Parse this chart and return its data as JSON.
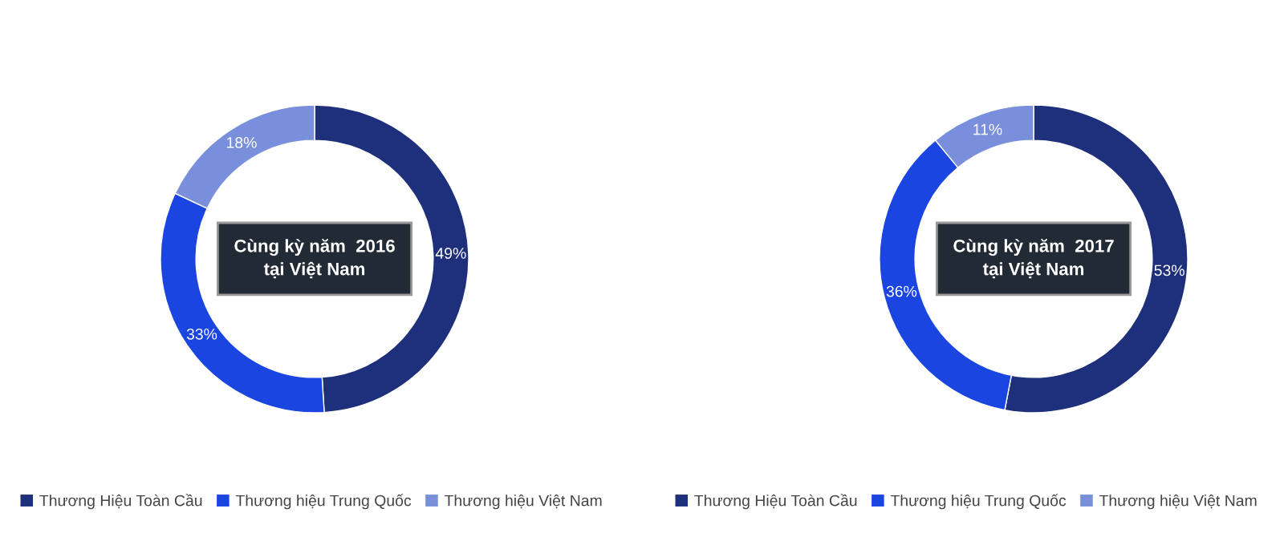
{
  "chart_data": [
    {
      "type": "donut",
      "categories": [
        "Thương Hiệu Toàn Cầu",
        "Thương hiệu Trung Quốc",
        "Thương hiệu Việt Nam"
      ],
      "values": [
        49,
        33,
        18
      ],
      "colors": [
        "#1e2f7c",
        "#1a45e0",
        "#7a8fdc"
      ],
      "value_labels": [
        "49%",
        "33%",
        "18%"
      ],
      "annotations": [
        "Cùng kỳ năm  2016\ntại Việt Nam"
      ],
      "legend": "bottom"
    },
    {
      "type": "donut",
      "categories": [
        "Thương Hiệu Toàn Cầu",
        "Thương hiệu Trung Quốc",
        "Thương hiệu Việt Nam"
      ],
      "values": [
        53,
        36,
        11
      ],
      "colors": [
        "#1e2f7c",
        "#1a45e0",
        "#7a8fdc"
      ],
      "value_labels": [
        "53%",
        "36%",
        "11%"
      ],
      "annotations": [
        "Cùng kỳ năm  2017\ntại Việt Nam"
      ],
      "legend": "bottom"
    }
  ]
}
